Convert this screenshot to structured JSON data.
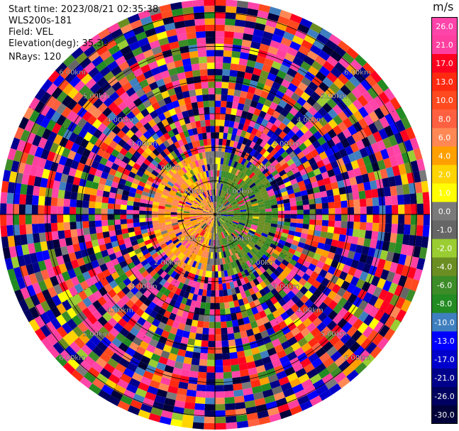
{
  "header": {
    "start_time": "Start time: 2023/08/21 02:35:38",
    "instrument": "WLS200s-181",
    "field": "Field: VEL",
    "elevation": "Elevation(deg): 35.30",
    "nrays": "NRays: 120"
  },
  "chart_data": {
    "type": "heatmap",
    "projection": "polar PPI",
    "field": "VEL",
    "unit": "m/s",
    "range_ring_labels": [
      "1.00km",
      "2.00km",
      "3.00km",
      "4.00km",
      "5.00km",
      "6.00km"
    ],
    "ring_km": [
      1,
      2,
      3,
      4,
      5,
      6
    ],
    "max_range_km": 6.4,
    "colorbar": {
      "unit_label": "m/s",
      "tick_labels": [
        "26.0",
        "21.0",
        "17.0",
        "13.0",
        "10.0",
        "8.0",
        "6.0",
        "4.0",
        "2.0",
        "1.0",
        "0.0",
        "-1.0",
        "-2.0",
        "-4.0",
        "-6.0",
        "-8.0",
        "-10.0",
        "-13.0",
        "-17.0",
        "-21.0",
        "-26.0",
        "-30.0"
      ],
      "bins": [
        {
          "from": 26,
          "to": 30,
          "color": "#ff44aa"
        },
        {
          "from": 21,
          "to": 26,
          "color": "#ff3fa0"
        },
        {
          "from": 17,
          "to": 21,
          "color": "#ff0020"
        },
        {
          "from": 13,
          "to": 17,
          "color": "#ff2a10"
        },
        {
          "from": 10,
          "to": 13,
          "color": "#ff4a20"
        },
        {
          "from": 8,
          "to": 10,
          "color": "#ff6040"
        },
        {
          "from": 6,
          "to": 8,
          "color": "#ff8855"
        },
        {
          "from": 4,
          "to": 6,
          "color": "#ffa000"
        },
        {
          "from": 2,
          "to": 4,
          "color": "#ffd400"
        },
        {
          "from": 1,
          "to": 2,
          "color": "#ffff00"
        },
        {
          "from": 0,
          "to": 1,
          "color": "#7a7a7a"
        },
        {
          "from": -1,
          "to": 0,
          "color": "#666666"
        },
        {
          "from": -2,
          "to": -1,
          "color": "#9acd32"
        },
        {
          "from": -4,
          "to": -2,
          "color": "#6b8e23"
        },
        {
          "from": -6,
          "to": -4,
          "color": "#3c8c28"
        },
        {
          "from": -8,
          "to": -6,
          "color": "#228b22"
        },
        {
          "from": -10,
          "to": -8,
          "color": "#3f7fbf"
        },
        {
          "from": -13,
          "to": -10,
          "color": "#0000ff"
        },
        {
          "from": -17,
          "to": -13,
          "color": "#0000cd"
        },
        {
          "from": -21,
          "to": -17,
          "color": "#00008b"
        },
        {
          "from": -26,
          "to": -21,
          "color": "#000060"
        },
        {
          "from": -30,
          "to": -26,
          "color": "#00003a"
        }
      ]
    },
    "near_field_pattern": {
      "description_values_m_s": {
        "west_side": [
          4,
          8
        ],
        "east_side": [
          -6,
          -2
        ]
      },
      "valid_range_km": 2.0
    }
  }
}
